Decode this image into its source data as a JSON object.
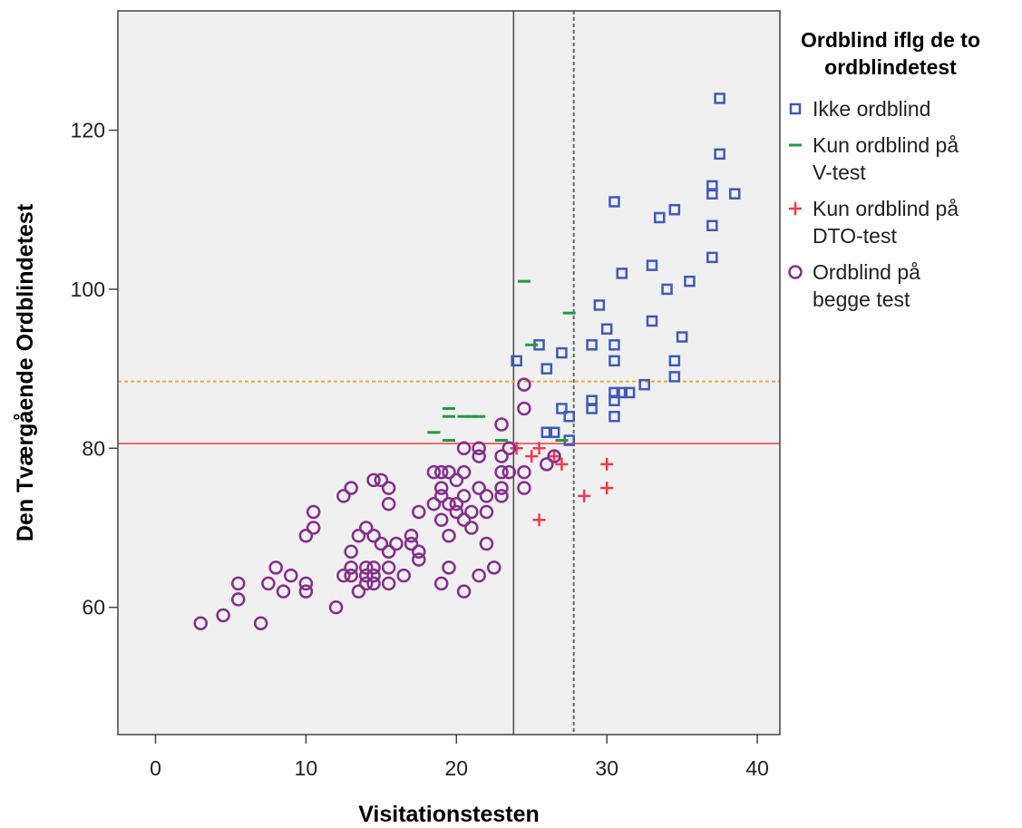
{
  "chart_data": {
    "type": "scatter",
    "xlabel": "Visitationstesten",
    "ylabel": "Den Tværgående Ordblindetest",
    "xlim": [
      -2.5,
      41.5
    ],
    "ylim": [
      44,
      135
    ],
    "xticks": [
      0,
      10,
      20,
      30,
      40
    ],
    "yticks": [
      60,
      80,
      100,
      120
    ],
    "grid": false,
    "legend_position": "right",
    "legend": {
      "title_lines": [
        "Ordblind iflg de to",
        "ordblindetest"
      ]
    },
    "colors": {
      "plot_background": "#f0f0f0",
      "axis": "#444444",
      "ikke": "#3e5ab8",
      "kunV": "#1f9a48",
      "kunDTO": "#f03a4a",
      "begge": "#842d8c",
      "ref_x_solid": "#555555",
      "ref_x_dashed": "#666666",
      "ref_y_solid": "#ef4a4a",
      "ref_y_dashed": "#f2a33a"
    },
    "reference_lines": [
      {
        "axis": "x",
        "value": 23.8,
        "style": "solid"
      },
      {
        "axis": "x",
        "value": 27.8,
        "style": "dashed"
      },
      {
        "axis": "y",
        "value": 80.6,
        "style": "solid"
      },
      {
        "axis": "y",
        "value": 88.4,
        "style": "dashed"
      }
    ],
    "series": [
      {
        "key": "ikke",
        "name_lines": [
          "Ikke ordblind"
        ],
        "marker": "square",
        "points": [
          [
            37.5,
            124
          ],
          [
            37.5,
            117
          ],
          [
            37,
            113
          ],
          [
            37,
            112
          ],
          [
            38.5,
            112
          ],
          [
            30.5,
            111
          ],
          [
            34.5,
            110
          ],
          [
            33.5,
            109
          ],
          [
            37,
            108
          ],
          [
            37,
            104
          ],
          [
            33,
            103
          ],
          [
            31,
            102
          ],
          [
            35.5,
            101
          ],
          [
            34,
            100
          ],
          [
            29.5,
            98
          ],
          [
            33,
            96
          ],
          [
            30,
            95
          ],
          [
            35,
            94
          ],
          [
            25.5,
            93
          ],
          [
            29,
            93
          ],
          [
            30.5,
            93
          ],
          [
            27,
            92
          ],
          [
            24,
            91
          ],
          [
            30.5,
            91
          ],
          [
            34.5,
            91
          ],
          [
            26,
            90
          ],
          [
            34.5,
            89
          ],
          [
            32.5,
            88
          ],
          [
            30.5,
            87
          ],
          [
            31,
            87
          ],
          [
            31.5,
            87
          ],
          [
            29,
            86
          ],
          [
            30.5,
            86
          ],
          [
            29,
            85
          ],
          [
            27,
            85
          ],
          [
            27.5,
            84
          ],
          [
            30.5,
            84
          ],
          [
            26,
            82
          ],
          [
            26.5,
            82
          ],
          [
            27.5,
            81
          ]
        ]
      },
      {
        "key": "kunV",
        "name_lines": [
          "Kun ordblind på",
          "V-test"
        ],
        "marker": "dash",
        "points": [
          [
            24.5,
            101
          ],
          [
            27.5,
            97
          ],
          [
            25,
            93
          ],
          [
            19.5,
            85
          ],
          [
            19.5,
            84
          ],
          [
            20.5,
            84
          ],
          [
            21,
            84
          ],
          [
            21.5,
            84
          ],
          [
            18.5,
            82
          ],
          [
            19.5,
            81
          ],
          [
            23,
            81
          ],
          [
            27,
            81
          ]
        ]
      },
      {
        "key": "kunDTO",
        "name_lines": [
          "Kun ordblind på",
          "DTO-test"
        ],
        "marker": "plus",
        "points": [
          [
            24,
            80
          ],
          [
            25.5,
            80
          ],
          [
            25,
            79
          ],
          [
            26.5,
            79
          ],
          [
            27,
            78
          ],
          [
            30,
            78
          ],
          [
            30,
            75
          ],
          [
            28.5,
            74
          ],
          [
            25.5,
            71
          ]
        ]
      },
      {
        "key": "begge",
        "name_lines": [
          "Ordblind på",
          "begge test"
        ],
        "marker": "circle",
        "points": [
          [
            24.5,
            88
          ],
          [
            24.5,
            85
          ],
          [
            23,
            83
          ],
          [
            20.5,
            80
          ],
          [
            21.5,
            80
          ],
          [
            23.5,
            80
          ],
          [
            23,
            79
          ],
          [
            21.5,
            79
          ],
          [
            26.5,
            79
          ],
          [
            26,
            78
          ],
          [
            18.5,
            77
          ],
          [
            19,
            77
          ],
          [
            19.5,
            77
          ],
          [
            20.5,
            77
          ],
          [
            23,
            77
          ],
          [
            23.5,
            77
          ],
          [
            24.5,
            77
          ],
          [
            20,
            76
          ],
          [
            14.5,
            76
          ],
          [
            15,
            76
          ],
          [
            13,
            75
          ],
          [
            15.5,
            75
          ],
          [
            19,
            75
          ],
          [
            21.5,
            75
          ],
          [
            23,
            75
          ],
          [
            24.5,
            75
          ],
          [
            12.5,
            74
          ],
          [
            19,
            74
          ],
          [
            20.5,
            74
          ],
          [
            22,
            74
          ],
          [
            23,
            74
          ],
          [
            15.5,
            73
          ],
          [
            18.5,
            73
          ],
          [
            19.5,
            73
          ],
          [
            20,
            73
          ],
          [
            10.5,
            72
          ],
          [
            17.5,
            72
          ],
          [
            20,
            72
          ],
          [
            21,
            72
          ],
          [
            22,
            72
          ],
          [
            19,
            71
          ],
          [
            20.5,
            71
          ],
          [
            10.5,
            70
          ],
          [
            14,
            70
          ],
          [
            21,
            70
          ],
          [
            10,
            69
          ],
          [
            13.5,
            69
          ],
          [
            14.5,
            69
          ],
          [
            17,
            69
          ],
          [
            19.5,
            69
          ],
          [
            15,
            68
          ],
          [
            16,
            68
          ],
          [
            17,
            68
          ],
          [
            22,
            68
          ],
          [
            13,
            67
          ],
          [
            15.5,
            67
          ],
          [
            17.5,
            67
          ],
          [
            17.5,
            66
          ],
          [
            8,
            65
          ],
          [
            13,
            65
          ],
          [
            14,
            65
          ],
          [
            14.5,
            65
          ],
          [
            15.5,
            65
          ],
          [
            19.5,
            65
          ],
          [
            22.5,
            65
          ],
          [
            9,
            64
          ],
          [
            12.5,
            64
          ],
          [
            13,
            64
          ],
          [
            14,
            64
          ],
          [
            14.5,
            64
          ],
          [
            16.5,
            64
          ],
          [
            21.5,
            64
          ],
          [
            5.5,
            63
          ],
          [
            7.5,
            63
          ],
          [
            10,
            63
          ],
          [
            14,
            63
          ],
          [
            14.5,
            63
          ],
          [
            15.5,
            63
          ],
          [
            19,
            63
          ],
          [
            8.5,
            62
          ],
          [
            10,
            62
          ],
          [
            13.5,
            62
          ],
          [
            20.5,
            62
          ],
          [
            5.5,
            61
          ],
          [
            12,
            60
          ],
          [
            4.5,
            59
          ],
          [
            3,
            58
          ],
          [
            7,
            58
          ]
        ]
      }
    ]
  }
}
